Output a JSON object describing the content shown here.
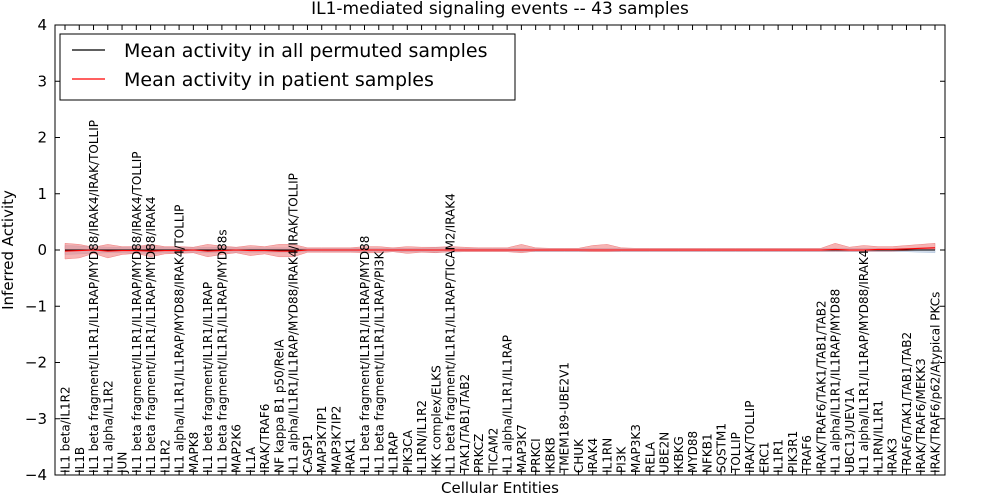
{
  "chart_data": {
    "type": "line",
    "title": "IL1-mediated signaling events -- 43 samples",
    "xlabel": "Cellular Entities",
    "ylabel": "Inferred Activity",
    "ylim": [
      -4,
      4
    ],
    "yticks": [
      -4,
      -3,
      -2,
      -1,
      0,
      1,
      2,
      3,
      4
    ],
    "ytick_labels": [
      "−4",
      "−3",
      "−2",
      "−1",
      "0",
      "1",
      "2",
      "3",
      "4"
    ],
    "grid": false,
    "legend_position": "top-left",
    "colors": {
      "permuted": "#000000",
      "patient": "#ff0000",
      "patient_band": "#f08080",
      "permuted_band": "#b0c4de"
    },
    "categories": [
      "IL1 beta/IL1R2",
      "IL1B",
      "IL1 beta fragment/IL1R1/IL1RAP/MYD88/IRAK4/IRAK/TOLLIP",
      "IL1 alpha/IL1R2",
      "JUN",
      "IL1 beta fragment/IL1R1/IL1RAP/MYD88/IRAK4/TOLLIP",
      "IL1 beta fragment/IL1R1/IL1RAP/MYD88/IRAK4",
      "IL1R2",
      "IL1 alpha/IL1R1/IL1RAP/MYD88/IRAK4/TOLLIP",
      "MAPK8",
      "IL1 beta fragment/IL1R1/IL1RAP",
      "IL1 beta fragment/IL1R1/IL1RAP/MYD88s",
      "MAP2K6",
      "IL1A",
      "IRAK/TRAF6",
      "NF kappa B1 p50/RelA",
      "IL1 alpha/IL1R1/IL1RAP/MYD88/IRAK4/IRAK/TOLLIP",
      "CASP1",
      "MAP3K7IP1",
      "MAP3K7IP2",
      "IRAK1",
      "IL1 beta fragment/IL1R1/IL1RAP/MYD88",
      "IL1 beta fragment/IL1R1/IL1RAP/PI3K",
      "IL1RAP",
      "PIK3CA",
      "IL1RN/IL1R2",
      "IKK complex/ELKS",
      "IL1 beta fragment/IL1R1/IL1RAP/TICAM2/IRAK4",
      "TAK1/TAB1/TAB2",
      "PRKCZ",
      "TICAM2",
      "IL1 alpha/IL1R1/IL1RAP",
      "MAP3K7",
      "PRKCI",
      "IKBKB",
      "TMEM189-UBE2V1",
      "CHUK",
      "IRAK4",
      "IL1RN",
      "PI3K",
      "MAP3K3",
      "RELA",
      "UBE2N",
      "IKBKG",
      "MYD88",
      "NFKB1",
      "SQSTM1",
      "TOLLIP",
      "IRAK/TOLLIP",
      "ERC1",
      "IL1R1",
      "PIK3R1",
      "TRAF6",
      "IRAK/TRAF6/TAK1/TAB1/TAB2",
      "IL1 alpha/IL1R1/IL1RAP/MYD88",
      "UBC13/UEV1A",
      "IL1 alpha/IL1R1/IL1RAP/MYD88/IRAK4",
      "IL1RN/IL1R1",
      "IRAK3",
      "TRAF6/TAK1/TAB1/TAB2",
      "IRAK/TRAF6/MEKK3",
      "IRAK/TRAF6/p62/Atypical PKCs"
    ],
    "series": [
      {
        "name": "Mean activity in all permuted samples",
        "values": [
          0.0,
          0.0,
          0.0,
          0.0,
          0.0,
          0.0,
          0.0,
          0.0,
          0.0,
          0.0,
          0.0,
          0.0,
          0.0,
          0.0,
          0.0,
          0.0,
          0.0,
          0.0,
          0.0,
          0.0,
          0.0,
          0.0,
          0.0,
          0.0,
          0.0,
          0.0,
          0.0,
          0.0,
          0.0,
          0.0,
          0.0,
          0.0,
          0.0,
          0.0,
          0.0,
          0.0,
          0.0,
          0.0,
          0.0,
          0.0,
          0.0,
          0.0,
          0.0,
          0.0,
          0.0,
          0.0,
          0.0,
          0.0,
          0.0,
          0.0,
          0.0,
          0.0,
          0.0,
          0.0,
          0.0,
          0.0,
          0.0,
          0.0,
          0.0,
          0.0,
          0.0,
          0.0
        ],
        "band_low": [
          -0.08,
          -0.07,
          -0.06,
          -0.05,
          -0.05,
          -0.06,
          -0.06,
          -0.05,
          -0.05,
          -0.04,
          -0.05,
          -0.05,
          -0.04,
          -0.04,
          -0.04,
          -0.04,
          -0.04,
          -0.03,
          -0.03,
          -0.03,
          -0.03,
          -0.03,
          -0.03,
          -0.03,
          -0.03,
          -0.03,
          -0.04,
          -0.04,
          -0.03,
          -0.03,
          -0.03,
          -0.03,
          -0.03,
          -0.03,
          -0.03,
          -0.03,
          -0.03,
          -0.03,
          -0.03,
          -0.03,
          -0.03,
          -0.03,
          -0.03,
          -0.03,
          -0.03,
          -0.03,
          -0.03,
          -0.03,
          -0.03,
          -0.03,
          -0.03,
          -0.03,
          -0.03,
          -0.03,
          -0.03,
          -0.03,
          -0.03,
          -0.03,
          -0.03,
          -0.03,
          -0.04,
          -0.05
        ],
        "band_high": [
          0.08,
          0.07,
          0.06,
          0.05,
          0.05,
          0.06,
          0.06,
          0.05,
          0.05,
          0.04,
          0.05,
          0.05,
          0.04,
          0.04,
          0.04,
          0.04,
          0.04,
          0.03,
          0.03,
          0.03,
          0.03,
          0.03,
          0.03,
          0.03,
          0.03,
          0.03,
          0.04,
          0.04,
          0.03,
          0.03,
          0.03,
          0.03,
          0.03,
          0.03,
          0.03,
          0.03,
          0.03,
          0.03,
          0.03,
          0.03,
          0.03,
          0.03,
          0.03,
          0.03,
          0.03,
          0.03,
          0.03,
          0.03,
          0.03,
          0.03,
          0.03,
          0.03,
          0.03,
          0.03,
          0.03,
          0.03,
          0.03,
          0.03,
          0.03,
          0.03,
          0.04,
          0.05
        ]
      },
      {
        "name": "Mean activity in patient samples",
        "values": [
          -0.02,
          -0.01,
          0.0,
          -0.02,
          -0.01,
          -0.01,
          -0.02,
          -0.01,
          -0.01,
          0.0,
          -0.02,
          -0.01,
          0.0,
          -0.01,
          -0.01,
          -0.02,
          -0.02,
          0.0,
          0.0,
          0.0,
          0.0,
          0.0,
          0.0,
          0.0,
          0.0,
          0.0,
          0.0,
          0.0,
          0.0,
          0.0,
          0.0,
          0.0,
          0.0,
          0.0,
          0.0,
          0.0,
          0.0,
          0.0,
          0.0,
          0.0,
          0.0,
          0.0,
          0.0,
          0.0,
          0.0,
          0.0,
          0.0,
          0.0,
          0.0,
          0.0,
          0.0,
          0.0,
          0.0,
          0.0,
          0.01,
          0.0,
          0.0,
          0.01,
          0.01,
          0.02,
          0.03,
          0.04
        ],
        "band_low": [
          -0.16,
          -0.14,
          -0.06,
          -0.14,
          -0.08,
          -0.06,
          -0.12,
          -0.07,
          -0.06,
          -0.05,
          -0.12,
          -0.08,
          -0.05,
          -0.1,
          -0.07,
          -0.12,
          -0.12,
          -0.04,
          -0.04,
          -0.04,
          -0.04,
          -0.05,
          -0.05,
          -0.03,
          -0.06,
          -0.04,
          -0.05,
          -0.03,
          -0.03,
          -0.03,
          -0.03,
          -0.03,
          -0.05,
          -0.02,
          -0.02,
          -0.02,
          -0.02,
          -0.03,
          -0.03,
          -0.02,
          -0.02,
          -0.02,
          -0.02,
          -0.02,
          -0.02,
          -0.02,
          -0.02,
          -0.02,
          -0.02,
          -0.02,
          -0.02,
          -0.02,
          -0.02,
          -0.02,
          -0.02,
          -0.02,
          -0.02,
          -0.02,
          -0.02,
          -0.01,
          0.0,
          0.0
        ],
        "band_high": [
          0.12,
          0.1,
          0.05,
          0.1,
          0.06,
          0.06,
          0.1,
          0.06,
          0.06,
          0.05,
          0.1,
          0.07,
          0.05,
          0.08,
          0.06,
          0.1,
          0.1,
          0.04,
          0.04,
          0.04,
          0.04,
          0.06,
          0.06,
          0.04,
          0.06,
          0.05,
          0.05,
          0.06,
          0.05,
          0.04,
          0.04,
          0.04,
          0.1,
          0.04,
          0.03,
          0.03,
          0.03,
          0.08,
          0.1,
          0.04,
          0.03,
          0.03,
          0.03,
          0.03,
          0.03,
          0.03,
          0.03,
          0.03,
          0.03,
          0.03,
          0.03,
          0.03,
          0.03,
          0.03,
          0.12,
          0.05,
          0.08,
          0.06,
          0.06,
          0.08,
          0.1,
          0.12
        ]
      }
    ]
  }
}
